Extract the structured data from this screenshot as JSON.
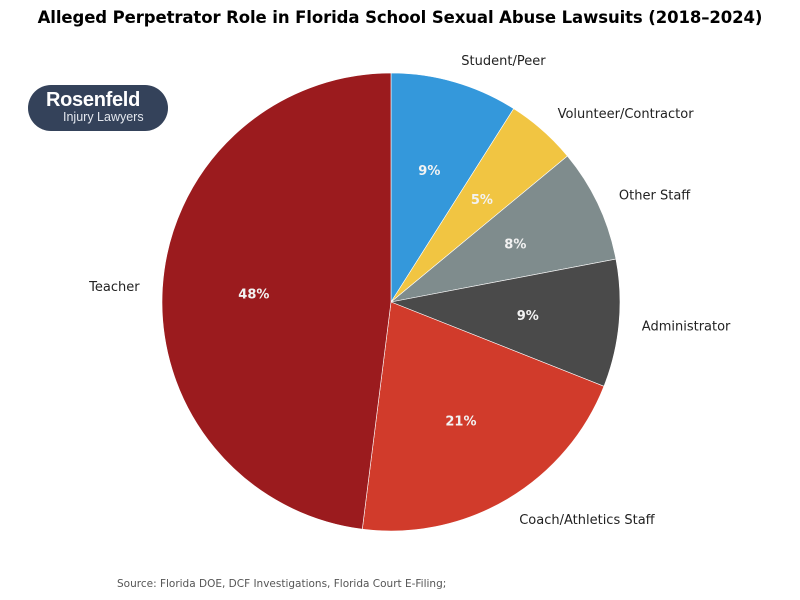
{
  "title": "Alleged Perpetrator Role in Florida School Sexual Abuse Lawsuits (2018–2024)",
  "logo": {
    "brand": "Rosenfeld",
    "sub": "Injury Lawyers",
    "background": "#34425a"
  },
  "source": "Source: Florida DOE, DCF Investigations, Florida Court E-Filing;",
  "chart_data": {
    "type": "pie",
    "title": "Alleged Perpetrator Role in Florida School Sexual Abuse Lawsuits (2018–2024)",
    "start_angle_deg": 90,
    "direction": "clockwise",
    "categories": [
      "Student/Peer",
      "Volunteer/Contractor",
      "Other Staff",
      "Administrator",
      "Coach/Athletics Staff",
      "Teacher"
    ],
    "values": [
      9,
      5,
      8,
      9,
      21,
      48
    ],
    "labels": [
      "9%",
      "5%",
      "8%",
      "9%",
      "21%",
      "48%"
    ],
    "colors": [
      "#3498db",
      "#f1c542",
      "#7f8c8d",
      "#4a4a4a",
      "#d13b2b",
      "#9b1b1e"
    ],
    "legend": "none (labels outside slices)",
    "annotations": [
      "Source: Florida DOE, DCF Investigations, Florida Court E-Filing;"
    ]
  }
}
